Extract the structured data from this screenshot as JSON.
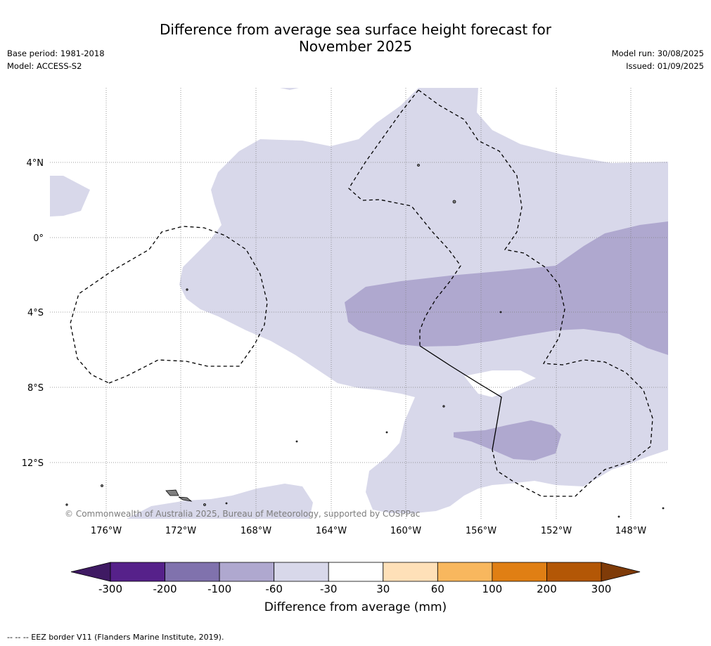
{
  "title": {
    "line1": "Difference from average sea surface height forecast for",
    "line2": "November 2025"
  },
  "meta_left": {
    "base_period": "Base period: 1981-2018",
    "model": "Model: ACCESS-S2"
  },
  "meta_right": {
    "model_run": "Model run: 30/08/2025",
    "issued": "Issued: 01/09/2025"
  },
  "latitude_labels": [
    "4°N",
    "0°",
    "4°S",
    "8°S",
    "12°S"
  ],
  "longitude_labels": [
    "176°W",
    "172°W",
    "168°W",
    "164°W",
    "160°W",
    "156°W",
    "152°W",
    "148°W"
  ],
  "copyright": "© Commonwealth of Australia 2025, Bureau of Meteorology, supported by COSPPac",
  "colorbar": {
    "label": "Difference from average (mm)",
    "ticks": [
      "-300",
      "-200",
      "-100",
      "-60",
      "-30",
      "30",
      "60",
      "100",
      "200",
      "300"
    ],
    "colors": [
      "#3f1a63",
      "#56218a",
      "#8072ad",
      "#afa8cf",
      "#d8d8ea",
      "#ffffff",
      "#fee0b8",
      "#f8b75e",
      "#e07f14",
      "#b35706",
      "#7f3b08"
    ]
  },
  "footer": "-- -- -- EEZ border V11 (Flanders Marine Institute, 2019).",
  "colors": {
    "light_purple": "#d8d8ea",
    "mid_purple": "#afa8cf",
    "land": "#808080"
  }
}
